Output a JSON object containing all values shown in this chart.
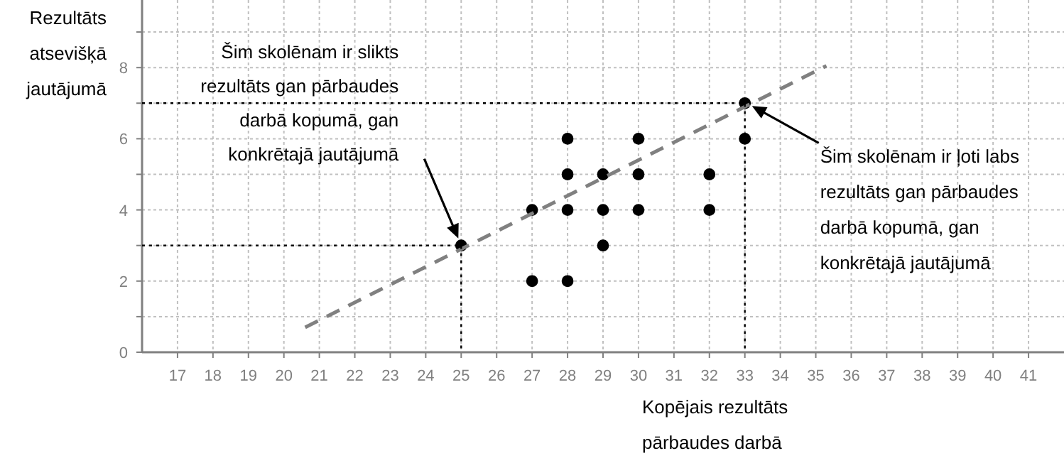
{
  "chart_data": {
    "type": "scatter",
    "xlabel": "Kopējais rezultāts pārbaudes darbā",
    "ylabel": "Rezultāts atsevišķā jautājumā",
    "xlim": [
      16,
      42
    ],
    "ylim": [
      0,
      9.9
    ],
    "xticks": [
      17,
      18,
      19,
      20,
      21,
      22,
      23,
      24,
      25,
      26,
      27,
      28,
      29,
      30,
      31,
      32,
      33,
      34,
      35,
      36,
      37,
      38,
      39,
      40,
      41
    ],
    "yticks": [
      0,
      {
        "value": 1,
        "label": null
      },
      2,
      {
        "value": 3,
        "label": null
      },
      4,
      {
        "value": 5,
        "label": null
      },
      6,
      {
        "value": 7,
        "label": null
      },
      8,
      {
        "value": 9,
        "label": null
      }
    ],
    "grid": true,
    "series": [
      {
        "color": "#000000",
        "marker": "circle",
        "x": [
          25,
          33,
          33,
          27,
          28,
          27,
          28,
          29,
          30,
          32,
          29,
          28,
          29,
          30,
          32,
          28,
          30
        ],
        "values": [
          3,
          7,
          6,
          2,
          2,
          4,
          4,
          4,
          4,
          4,
          3,
          5,
          5,
          5,
          5,
          6,
          6
        ]
      },
      {
        "type": "line",
        "color": "#808080",
        "line_style": "dashed",
        "marker": "none",
        "x": [
          20.6,
          35.3
        ],
        "values": [
          0.7,
          8.05
        ]
      },
      {
        "type": "line",
        "color": "#000000",
        "line_style": "dotted",
        "marker": "none",
        "x": [
          16,
          25,
          25
        ],
        "values": [
          3,
          3,
          0
        ]
      },
      {
        "type": "line",
        "color": "#000000",
        "line_style": "dotted",
        "marker": "none",
        "x": [
          16,
          33,
          33
        ],
        "values": [
          7,
          7,
          0
        ]
      }
    ],
    "annotations": [
      "Šim skolēnam ir slikts rezultāts gan pārbaudes darbā kopumā, gan konkrētajā jautājumā",
      "Šim skolēnam ir ļoti labs rezultāts gan pārbaudes darbā kopumā, gan konkrētajā jautājumā"
    ]
  }
}
